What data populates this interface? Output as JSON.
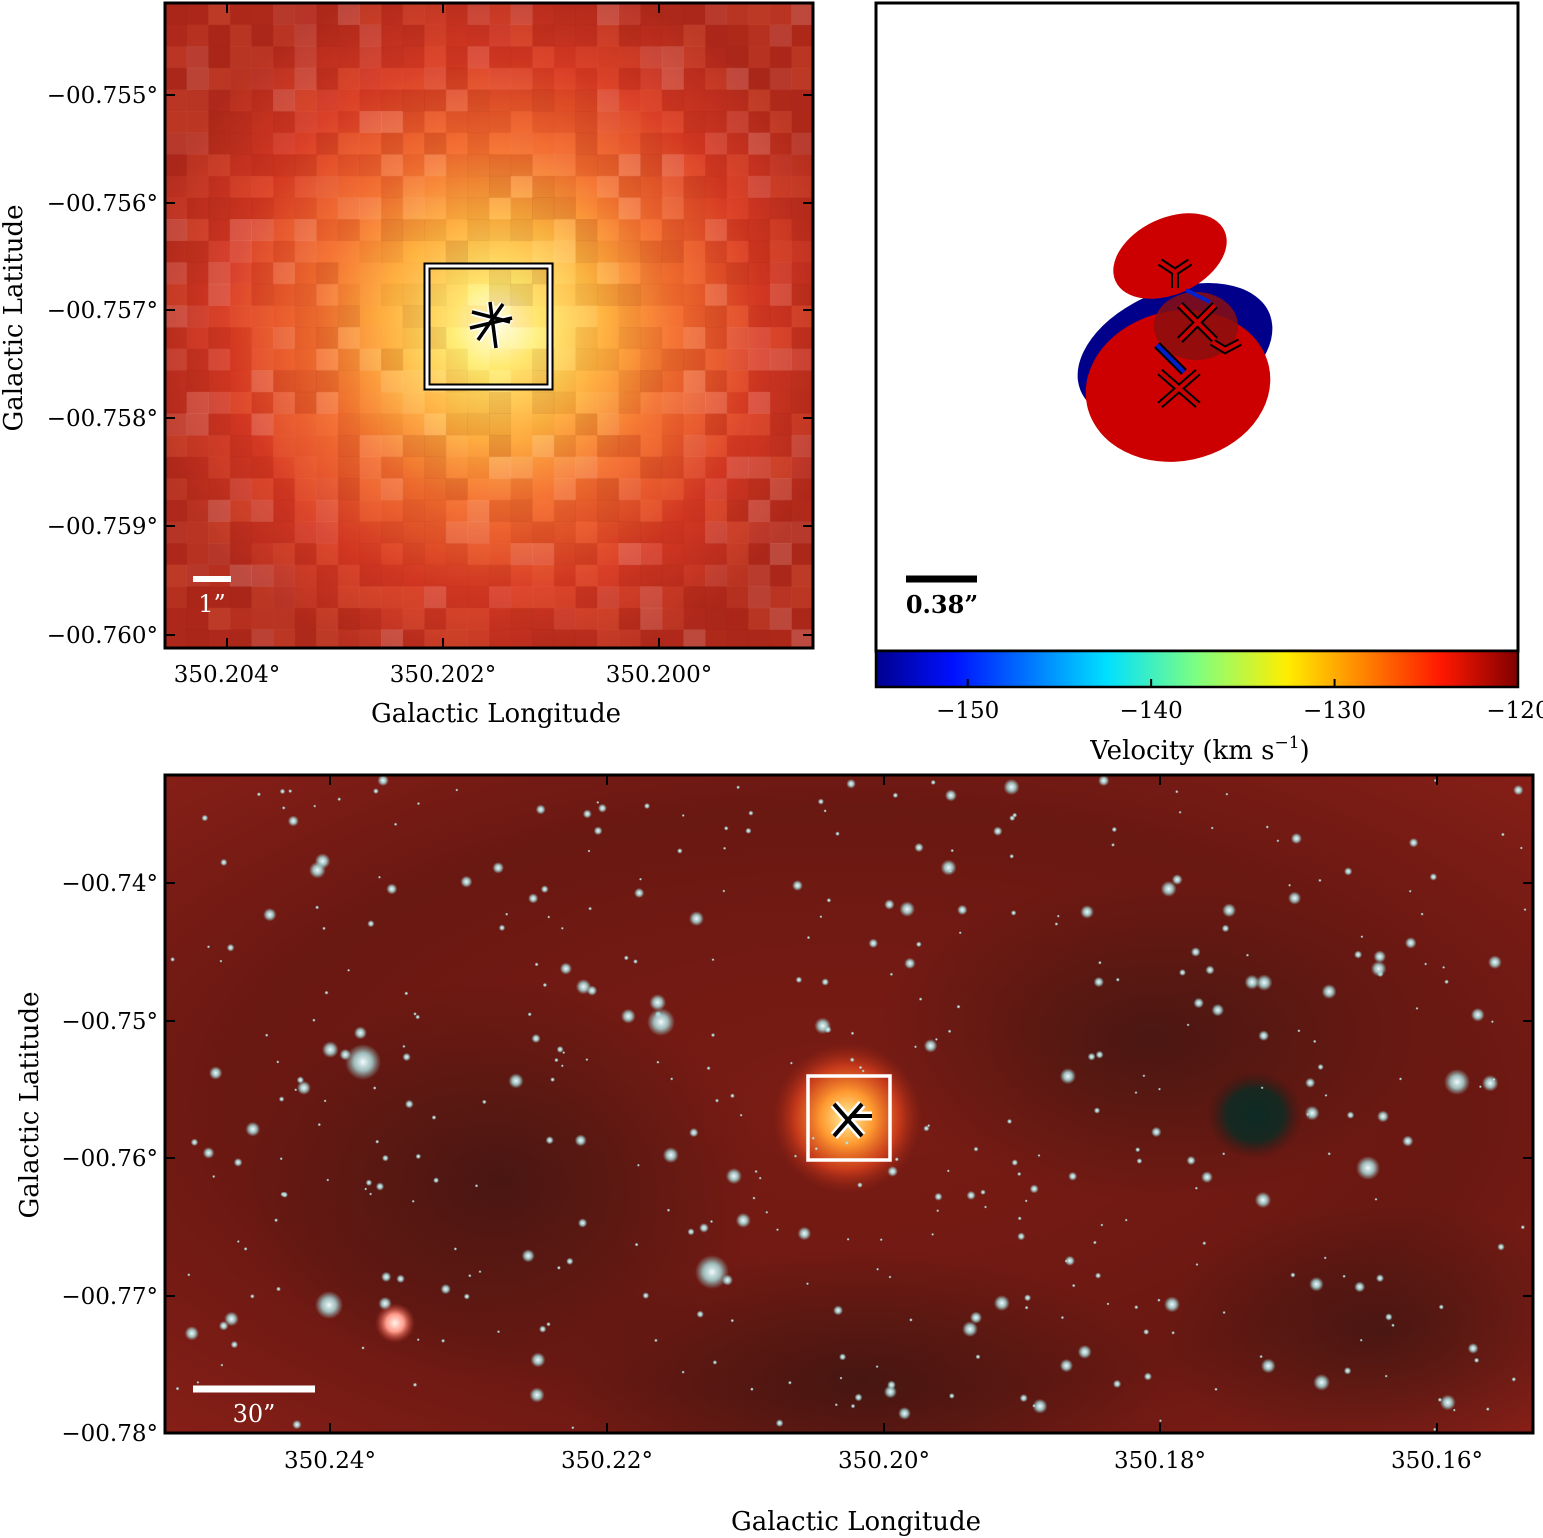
{
  "panel_top_left": {
    "y_ticks": [
      "−00.755°",
      "−00.756°",
      "−00.757°",
      "−00.758°",
      "−00.759°",
      "−00.760°"
    ],
    "x_ticks": [
      "350.204°",
      "350.202°",
      "350.200°"
    ],
    "xlabel": "Galactic Longitude",
    "ylabel": "Galactic Latitude",
    "scale_bar_label": "1”"
  },
  "panel_top_right": {
    "scale_bar_label": "0.38”",
    "colorbar": {
      "ticks": [
        "−150",
        "−140",
        "−130",
        "−120"
      ],
      "tick_values": [
        -150,
        -140,
        -130,
        -120
      ],
      "range": [
        -155,
        -120
      ],
      "label": "Velocity (km s",
      "label_exp": "−1",
      "label_end": ")",
      "colormap": "jet"
    },
    "ellipse_colors": {
      "red": "#cc0000",
      "blue": "#00008b",
      "dark": "#8a0e0e"
    }
  },
  "panel_bottom": {
    "y_ticks": [
      "−00.74°",
      "−00.75°",
      "−00.76°",
      "−00.77°",
      "−00.78°"
    ],
    "x_ticks": [
      "350.24°",
      "350.22°",
      "350.20°",
      "350.18°",
      "350.16°"
    ],
    "xlabel": "Galactic Longitude",
    "ylabel": "Galactic Latitude",
    "scale_bar_label": "30”"
  }
}
